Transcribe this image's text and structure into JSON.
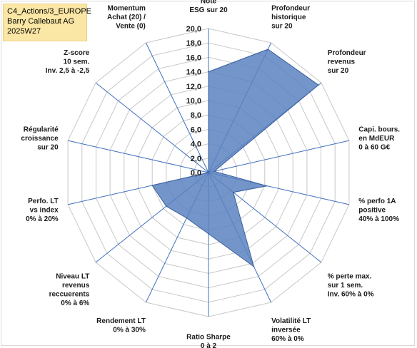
{
  "title_box": {
    "line1": "C4_Actions/3_EUROPE",
    "line2": "Barry Callebaut AG",
    "line3": "2025W27"
  },
  "colors": {
    "fill": "#5a82c0",
    "stroke": "#3b5f9e",
    "grid": "#c8c8c8",
    "spoke": "#3e6fbf",
    "title_bg": "#fbe7a5"
  },
  "chart_data": {
    "type": "radar",
    "title": "",
    "rmin": 0,
    "rmax": 20,
    "ticks": [
      "0,0",
      "2,0",
      "4,0",
      "6,0",
      "8,0",
      "10,0",
      "12,0",
      "14,0",
      "16,0",
      "18,0",
      "20,0"
    ],
    "grid": true,
    "axes": [
      {
        "label": [
          "Note",
          "ESG sur 20"
        ],
        "value": 14
      },
      {
        "label": [
          "Profondeur",
          "historique",
          "sur 20"
        ],
        "value": 19
      },
      {
        "label": [
          "Profondeur",
          "revenus",
          "sur 20"
        ],
        "value": 19.5
      },
      {
        "label": [
          "Capi. bours.",
          "en MdEUR",
          "0 à 60 G€"
        ],
        "value": 0.8
      },
      {
        "label": [
          "% perfo 1A",
          "positive",
          "40% à 100%"
        ],
        "value": 8.3
      },
      {
        "label": [
          "% perte max.",
          "sur 1 sem.",
          "Inv. 60% à 0%"
        ],
        "value": 4.4
      },
      {
        "label": [
          "Volatilité LT",
          "inversée",
          "60% à 0%"
        ],
        "value": 14.5
      },
      {
        "label": [
          "Ratio Sharpe",
          "0 à 2"
        ],
        "value": 8.5
      },
      {
        "label": [
          "Rendement LT",
          "0% à 30%"
        ],
        "value": 7
      },
      {
        "label": [
          "Niveau LT",
          "revenus",
          "reccuerents",
          "0% à 6%"
        ],
        "value": 7.5
      },
      {
        "label": [
          "Perfo. LT",
          "vs index",
          "0% à 20%"
        ],
        "value": 8
      },
      {
        "label": [
          "Régularité",
          "croissance",
          "sur 20"
        ],
        "value": 0
      },
      {
        "label": [
          "Z-score",
          "10 sem.",
          "Inv. 2,5 à -2,5"
        ],
        "value": 0
      },
      {
        "label": [
          "Momentum",
          "Achat (20) /",
          "Vente (0)"
        ],
        "value": 0
      }
    ]
  }
}
